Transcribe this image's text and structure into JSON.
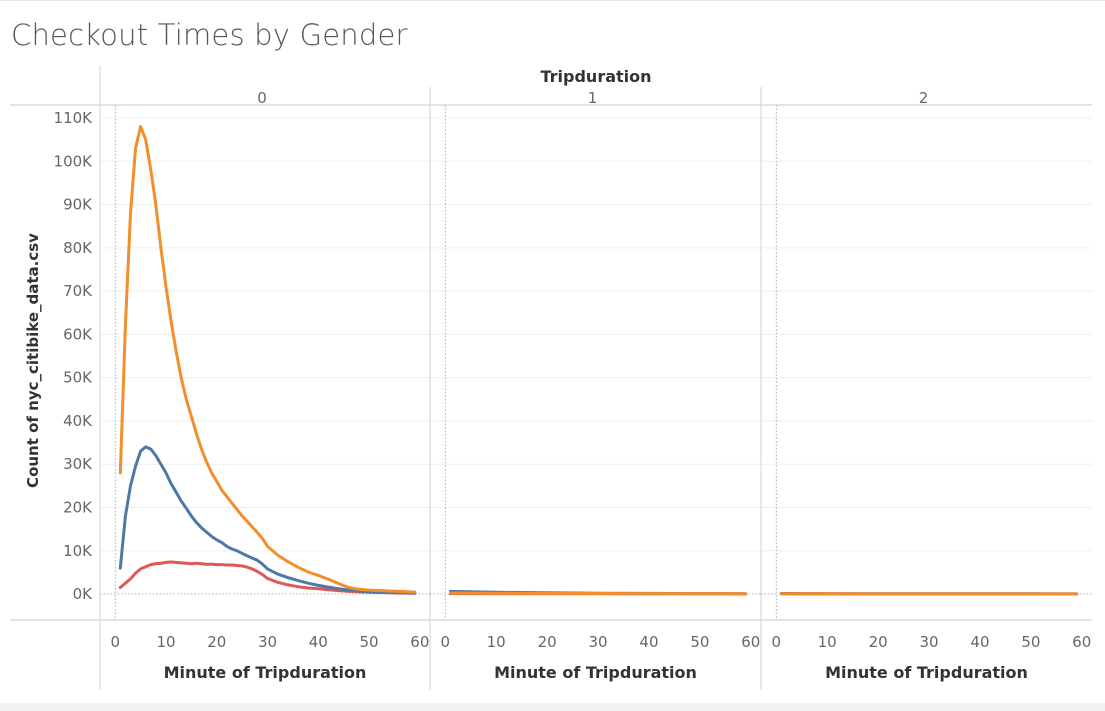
{
  "title": "Checkout Times by Gender",
  "chart_data": {
    "type": "line",
    "column_header": "Tripduration",
    "panels": [
      "0",
      "1",
      "2"
    ],
    "xlabel": "Minute of Tripduration",
    "ylabel": "Count of nyc_citibike_data.csv",
    "xlim": [
      -3,
      62
    ],
    "ylim": [
      -6000,
      113000
    ],
    "x_ticks": [
      0,
      10,
      20,
      30,
      40,
      50,
      60
    ],
    "y_ticks": [
      0,
      10000,
      20000,
      30000,
      40000,
      50000,
      60000,
      70000,
      80000,
      90000,
      100000,
      110000
    ],
    "y_tick_labels": [
      "0K",
      "10K",
      "20K",
      "30K",
      "40K",
      "50K",
      "60K",
      "70K",
      "80K",
      "90K",
      "100K",
      "110K"
    ],
    "series": [
      {
        "color": "#f28e2b",
        "panels": [
          {
            "x": [
              1,
              2,
              3,
              4,
              5,
              6,
              7,
              8,
              9,
              10,
              11,
              12,
              13,
              14,
              15,
              16,
              17,
              18,
              19,
              20,
              21,
              22,
              23,
              24,
              25,
              26,
              27,
              28,
              29,
              30,
              32,
              34,
              36,
              38,
              40,
              42,
              44,
              46,
              48,
              50,
              52,
              54,
              56,
              58,
              59
            ],
            "y": [
              28000,
              62000,
              88000,
              103000,
              108000,
              105000,
              98000,
              90000,
              80000,
              71000,
              63000,
              56000,
              50000,
              45000,
              41000,
              37000,
              33500,
              30500,
              28000,
              26000,
              24000,
              22500,
              21000,
              19500,
              18000,
              16800,
              15500,
              14200,
              12800,
              11000,
              9000,
              7500,
              6200,
              5100,
              4300,
              3400,
              2400,
              1500,
              1100,
              900,
              800,
              700,
              600,
              500,
              450
            ]
          },
          {
            "x": [
              1,
              10,
              20,
              30,
              40,
              50,
              59
            ],
            "y": [
              250,
              200,
              150,
              120,
              100,
              80,
              60
            ]
          },
          {
            "x": [
              1,
              10,
              20,
              30,
              40,
              50,
              59
            ],
            "y": [
              60,
              50,
              40,
              35,
              30,
              25,
              20
            ]
          }
        ]
      },
      {
        "color": "#4e79a7",
        "panels": [
          {
            "x": [
              1,
              2,
              3,
              4,
              5,
              6,
              7,
              8,
              9,
              10,
              11,
              12,
              13,
              14,
              15,
              16,
              17,
              18,
              19,
              20,
              21,
              22,
              23,
              24,
              25,
              26,
              27,
              28,
              29,
              30,
              32,
              34,
              36,
              38,
              40,
              42,
              44,
              46,
              48,
              50,
              52,
              54,
              56,
              58,
              59
            ],
            "y": [
              6000,
              18000,
              25000,
              29500,
              33000,
              34000,
              33500,
              32000,
              30000,
              28000,
              25500,
              23500,
              21500,
              19800,
              18000,
              16500,
              15300,
              14300,
              13300,
              12500,
              11900,
              11000,
              10400,
              10000,
              9400,
              8800,
              8300,
              7800,
              6900,
              5800,
              4600,
              3800,
              3100,
              2500,
              2000,
              1600,
              1200,
              900,
              700,
              550,
              450,
              350,
              300,
              250,
              220
            ]
          },
          {
            "x": [
              1,
              10,
              20,
              30,
              40,
              50,
              59
            ],
            "y": [
              600,
              400,
              300,
              200,
              150,
              100,
              80
            ]
          },
          {
            "x": [
              1,
              10,
              20,
              30,
              40,
              50,
              59
            ],
            "y": [
              120,
              100,
              80,
              70,
              60,
              50,
              40
            ]
          }
        ]
      },
      {
        "color": "#e15759",
        "panels": [
          {
            "x": [
              1,
              2,
              3,
              4,
              5,
              6,
              7,
              8,
              9,
              10,
              11,
              12,
              13,
              14,
              15,
              16,
              17,
              18,
              19,
              20,
              21,
              22,
              23,
              24,
              25,
              26,
              27,
              28,
              29,
              30,
              32,
              34,
              36,
              38,
              40,
              42,
              44,
              46,
              48,
              50,
              52,
              54,
              56,
              58,
              59
            ],
            "y": [
              1500,
              2500,
              3500,
              4800,
              5800,
              6300,
              6800,
              7000,
              7100,
              7300,
              7400,
              7300,
              7200,
              7100,
              7000,
              7100,
              7000,
              6900,
              6900,
              6800,
              6800,
              6700,
              6700,
              6600,
              6500,
              6200,
              5800,
              5200,
              4500,
              3600,
              2700,
              2100,
              1700,
              1400,
              1200,
              1000,
              800,
              600,
              500,
              400,
              350,
              300,
              250,
              220,
              200
            ]
          },
          {
            "x": [
              1,
              10,
              20,
              30,
              40,
              50,
              59
            ],
            "y": [
              100,
              80,
              60,
              50,
              40,
              30,
              20
            ]
          },
          {
            "x": [
              1,
              10,
              20,
              30,
              40,
              50,
              59
            ],
            "y": [
              20,
              18,
              15,
              12,
              10,
              8,
              6
            ]
          }
        ]
      }
    ]
  }
}
